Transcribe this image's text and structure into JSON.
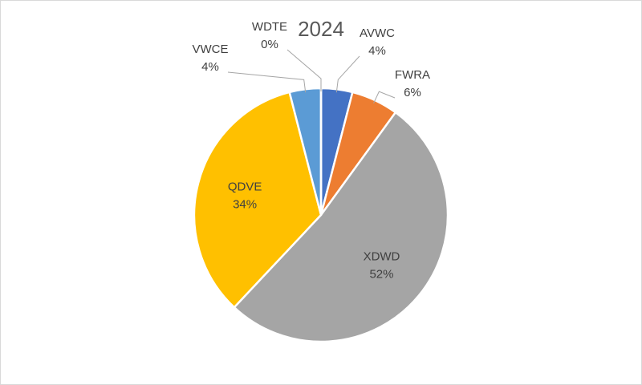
{
  "chart_data": {
    "type": "pie",
    "title": "2024",
    "categories": [
      "AVWC",
      "FWRA",
      "XDWD",
      "QDVE",
      "VWCE",
      "WDTE"
    ],
    "values": [
      4,
      6,
      52,
      34,
      4,
      0
    ],
    "value_labels": [
      "4%",
      "6%",
      "52%",
      "34%",
      "4%",
      "0%"
    ],
    "colors": [
      "#4472c4",
      "#ed7d31",
      "#a5a5a5",
      "#ffc000",
      "#5b9bd5",
      "#70ad47"
    ]
  }
}
